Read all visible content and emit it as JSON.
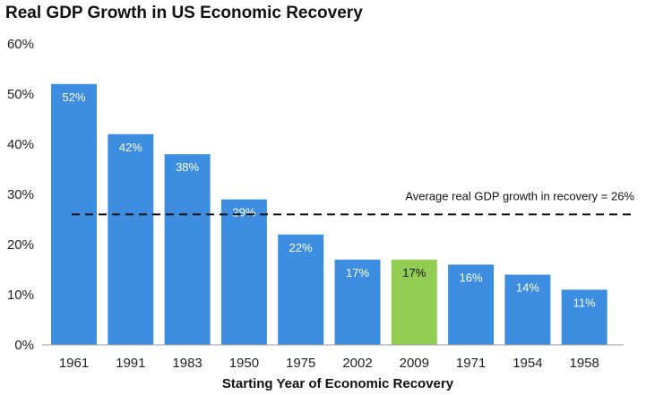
{
  "chart_data": {
    "type": "bar",
    "title": "Real GDP Growth in US Economic Recovery",
    "xlabel": "Starting Year of Economic Recovery",
    "ylabel": "",
    "categories": [
      "1961",
      "1991",
      "1983",
      "1950",
      "1975",
      "2002",
      "2009",
      "1971",
      "1954",
      "1958"
    ],
    "values": [
      52,
      42,
      38,
      29,
      22,
      17,
      17,
      16,
      14,
      11
    ],
    "data_labels": [
      "52%",
      "42%",
      "38%",
      "29%",
      "22%",
      "17%",
      "17%",
      "16%",
      "14%",
      "11%"
    ],
    "highlight_category": "2009",
    "ylim": [
      0,
      60
    ],
    "yticks": [
      0,
      10,
      20,
      30,
      40,
      50,
      60
    ],
    "ytick_labels": [
      "0%",
      "10%",
      "20%",
      "30%",
      "40%",
      "50%",
      "60%"
    ],
    "reference_line": {
      "value": 26,
      "label": "Average real GDP growth in recovery = 26%"
    },
    "grid": false,
    "legend": "none"
  },
  "colors": {
    "bar": "#3d8ee0",
    "highlight": "#92cc53",
    "axis": "#9a9a9a",
    "reference_line": "#111111",
    "label_on_bar": "#ffffff",
    "label_on_highlight": "#111111"
  }
}
